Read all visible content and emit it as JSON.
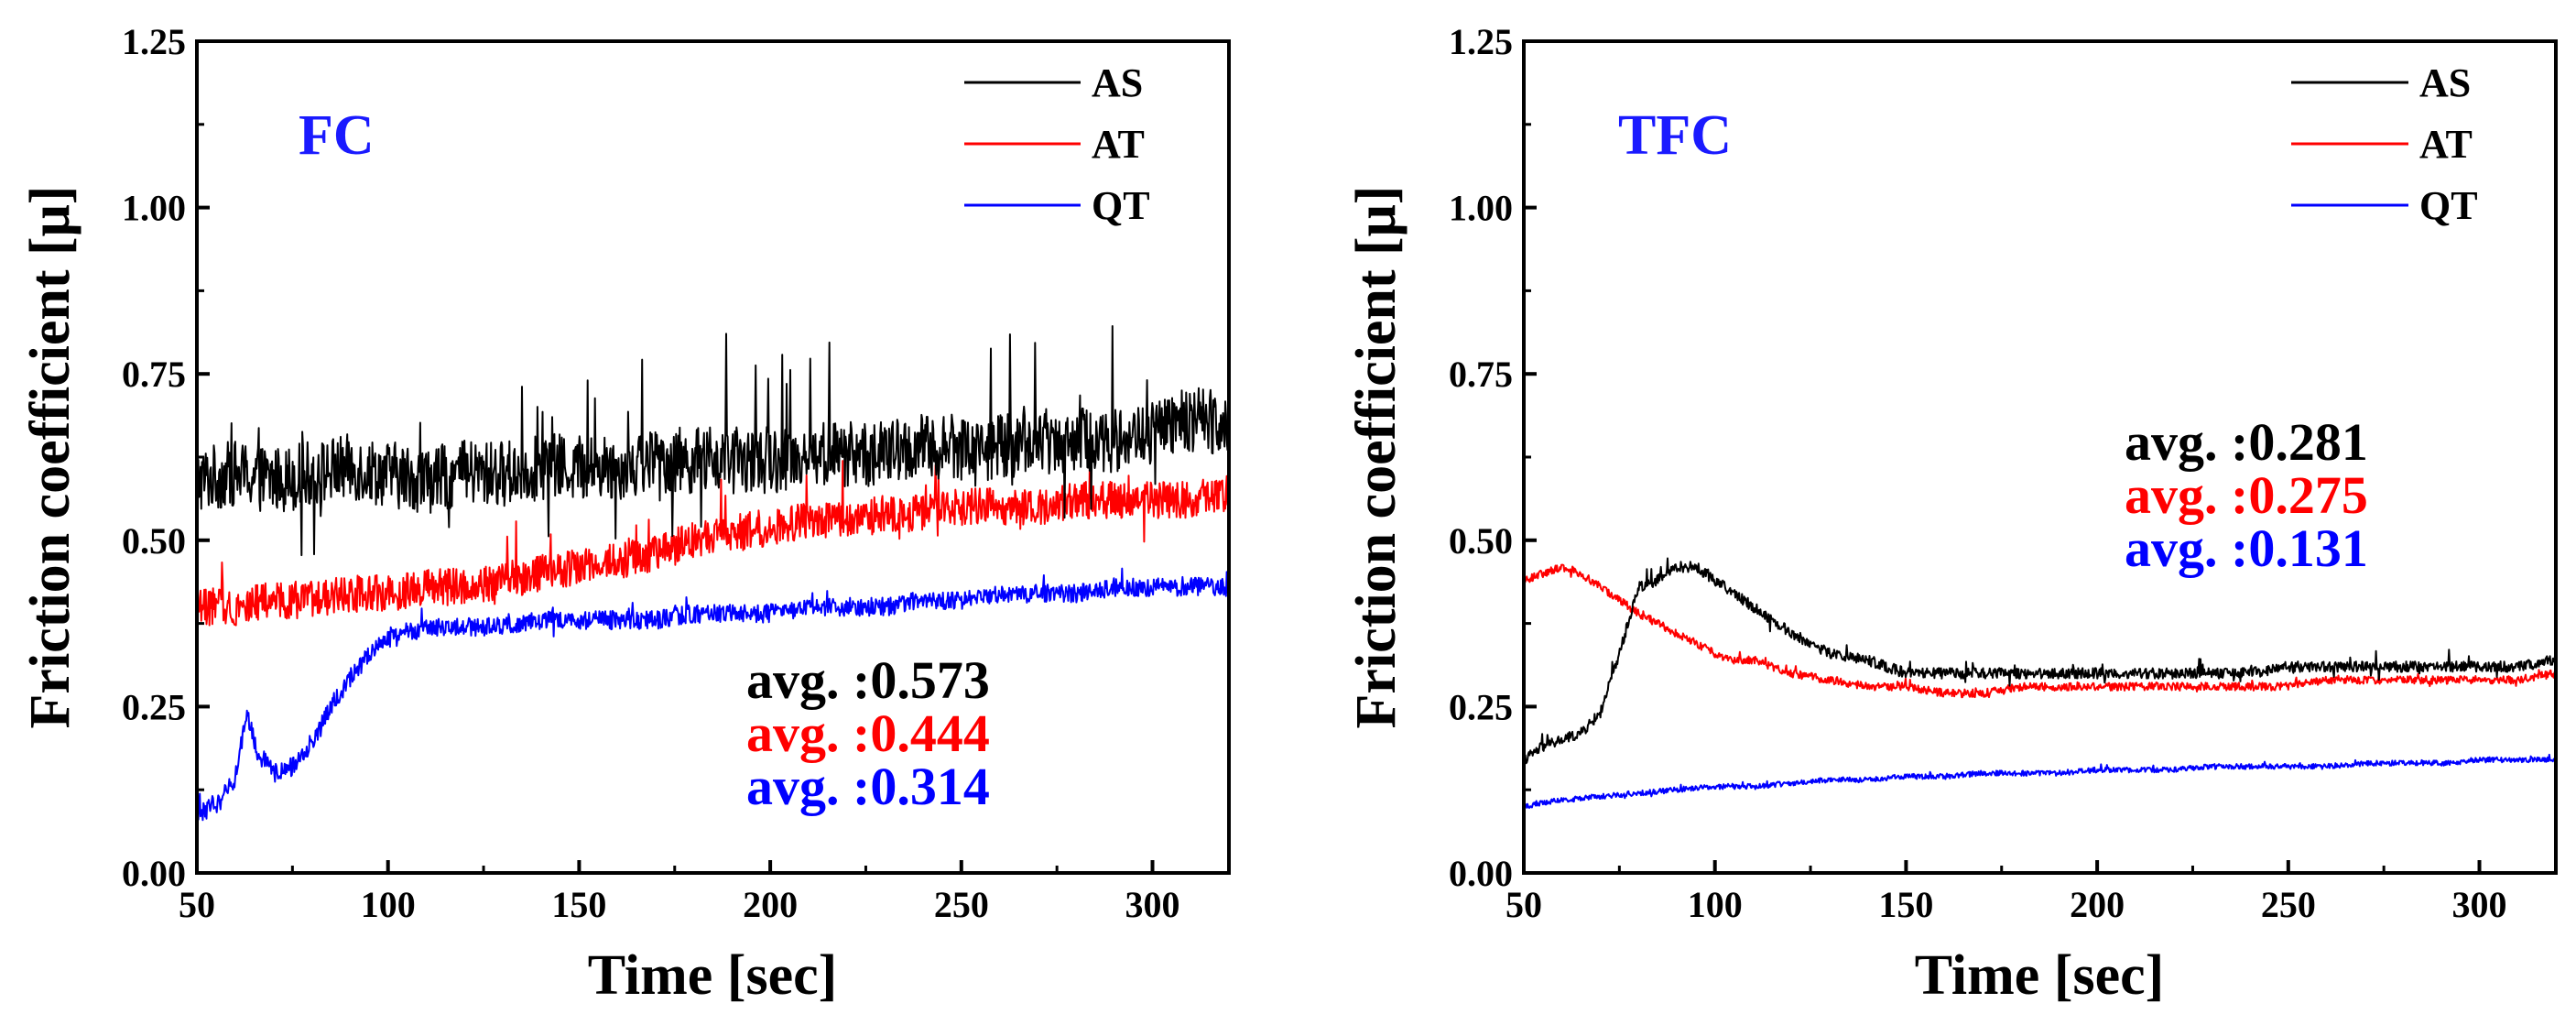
{
  "chart_data": [
    {
      "type": "line",
      "title": "FC",
      "title_color": "#1a1aff",
      "xlabel": "Time [sec]",
      "ylabel": "Friction coefficient [μ]",
      "xlim": [
        50,
        320
      ],
      "ylim": [
        0.0,
        1.25
      ],
      "xticks": [
        50,
        100,
        150,
        200,
        250,
        300
      ],
      "xtick_labels": [
        "50",
        "100",
        "150",
        "200",
        "250",
        "300"
      ],
      "yticks": [
        0.0,
        0.25,
        0.5,
        0.75,
        1.0,
        1.25
      ],
      "ytick_labels": [
        "0.00",
        "0.25",
        "0.50",
        "0.75",
        "1.00",
        "1.25"
      ],
      "legend_position": "top-right",
      "annotation_position": "bottom-right",
      "series": [
        {
          "name": "AS",
          "color": "#000000",
          "avg_label": "avg. :0.573",
          "noise": 0.05,
          "spike": 0.14,
          "x": [
            50,
            60,
            70,
            80,
            90,
            100,
            110,
            120,
            130,
            140,
            150,
            160,
            170,
            180,
            190,
            200,
            210,
            220,
            230,
            240,
            250,
            260,
            270,
            280,
            290,
            300,
            310,
            320
          ],
          "y": [
            0.59,
            0.6,
            0.59,
            0.6,
            0.61,
            0.6,
            0.59,
            0.6,
            0.6,
            0.61,
            0.61,
            0.61,
            0.62,
            0.62,
            0.62,
            0.62,
            0.63,
            0.63,
            0.63,
            0.64,
            0.64,
            0.64,
            0.65,
            0.65,
            0.65,
            0.66,
            0.68,
            0.68
          ]
        },
        {
          "name": "AT",
          "color": "#ff0000",
          "avg_label": "avg. :0.444",
          "noise": 0.028,
          "spike": 0.06,
          "x": [
            50,
            60,
            70,
            80,
            90,
            100,
            110,
            120,
            130,
            140,
            150,
            160,
            170,
            180,
            190,
            200,
            210,
            220,
            230,
            240,
            250,
            260,
            270,
            280,
            290,
            300,
            310,
            320
          ],
          "y": [
            0.4,
            0.4,
            0.41,
            0.41,
            0.42,
            0.42,
            0.43,
            0.43,
            0.44,
            0.45,
            0.46,
            0.47,
            0.48,
            0.5,
            0.51,
            0.52,
            0.53,
            0.53,
            0.54,
            0.54,
            0.55,
            0.55,
            0.55,
            0.56,
            0.56,
            0.56,
            0.56,
            0.57
          ]
        },
        {
          "name": "QT",
          "color": "#0000ff",
          "avg_label": "avg. :0.314",
          "noise": 0.014,
          "spike": 0.02,
          "x": [
            50,
            55,
            60,
            63,
            66,
            70,
            75,
            80,
            85,
            90,
            95,
            100,
            105,
            110,
            120,
            130,
            140,
            150,
            160,
            170,
            180,
            190,
            200,
            210,
            220,
            230,
            240,
            250,
            260,
            270,
            280,
            290,
            300,
            310,
            320
          ],
          "y": [
            0.09,
            0.1,
            0.14,
            0.24,
            0.18,
            0.15,
            0.16,
            0.19,
            0.25,
            0.29,
            0.33,
            0.35,
            0.36,
            0.37,
            0.37,
            0.37,
            0.38,
            0.38,
            0.38,
            0.38,
            0.39,
            0.39,
            0.39,
            0.4,
            0.4,
            0.4,
            0.41,
            0.41,
            0.42,
            0.42,
            0.42,
            0.43,
            0.43,
            0.43,
            0.43
          ]
        }
      ]
    },
    {
      "type": "line",
      "title": "TFC",
      "title_color": "#1a1aff",
      "xlabel": "Time [sec]",
      "ylabel": "Friction coefficient [μ]",
      "xlim": [
        50,
        320
      ],
      "ylim": [
        0.0,
        1.25
      ],
      "xticks": [
        50,
        100,
        150,
        200,
        250,
        300
      ],
      "xtick_labels": [
        "50",
        "100",
        "150",
        "200",
        "250",
        "300"
      ],
      "yticks": [
        0.0,
        0.25,
        0.5,
        0.75,
        1.0,
        1.25
      ],
      "ytick_labels": [
        "0.00",
        "0.25",
        "0.50",
        "0.75",
        "1.00",
        "1.25"
      ],
      "legend_position": "top-right",
      "annotation_position": "middle-right",
      "series": [
        {
          "name": "AS",
          "color": "#000000",
          "avg_label": "avg. :0.281",
          "noise": 0.008,
          "spike": 0.02,
          "x": [
            50,
            55,
            60,
            65,
            70,
            75,
            80,
            85,
            90,
            95,
            100,
            110,
            120,
            130,
            140,
            150,
            160,
            170,
            180,
            190,
            200,
            210,
            220,
            230,
            240,
            250,
            260,
            270,
            280,
            290,
            300,
            310,
            320
          ],
          "y": [
            0.17,
            0.19,
            0.2,
            0.21,
            0.24,
            0.33,
            0.43,
            0.44,
            0.46,
            0.46,
            0.44,
            0.4,
            0.36,
            0.33,
            0.32,
            0.3,
            0.3,
            0.3,
            0.3,
            0.3,
            0.3,
            0.3,
            0.3,
            0.3,
            0.3,
            0.31,
            0.31,
            0.31,
            0.31,
            0.31,
            0.31,
            0.31,
            0.32
          ]
        },
        {
          "name": "AT",
          "color": "#ff0000",
          "avg_label": "avg. :0.275",
          "noise": 0.006,
          "spike": 0.01,
          "x": [
            50,
            55,
            60,
            65,
            70,
            75,
            80,
            90,
            100,
            105,
            110,
            115,
            120,
            130,
            140,
            150,
            160,
            170,
            180,
            190,
            200,
            210,
            220,
            230,
            240,
            250,
            260,
            270,
            280,
            290,
            300,
            310,
            320
          ],
          "y": [
            0.44,
            0.45,
            0.46,
            0.45,
            0.43,
            0.41,
            0.39,
            0.36,
            0.33,
            0.32,
            0.32,
            0.31,
            0.3,
            0.29,
            0.28,
            0.28,
            0.27,
            0.27,
            0.28,
            0.28,
            0.28,
            0.28,
            0.28,
            0.28,
            0.28,
            0.28,
            0.29,
            0.29,
            0.29,
            0.29,
            0.29,
            0.29,
            0.3
          ]
        },
        {
          "name": "QT",
          "color": "#0000ff",
          "avg_label": "avg. :0.131",
          "noise": 0.004,
          "spike": 0.005,
          "x": [
            50,
            60,
            70,
            80,
            90,
            100,
            110,
            120,
            130,
            140,
            150,
            160,
            170,
            180,
            190,
            200,
            210,
            220,
            230,
            240,
            250,
            260,
            270,
            280,
            290,
            300,
            310,
            320
          ],
          "y": [
            0.1,
            0.11,
            0.115,
            0.12,
            0.125,
            0.13,
            0.13,
            0.135,
            0.14,
            0.14,
            0.145,
            0.145,
            0.15,
            0.15,
            0.15,
            0.155,
            0.155,
            0.155,
            0.16,
            0.16,
            0.16,
            0.16,
            0.165,
            0.165,
            0.165,
            0.17,
            0.17,
            0.17
          ]
        }
      ]
    }
  ]
}
